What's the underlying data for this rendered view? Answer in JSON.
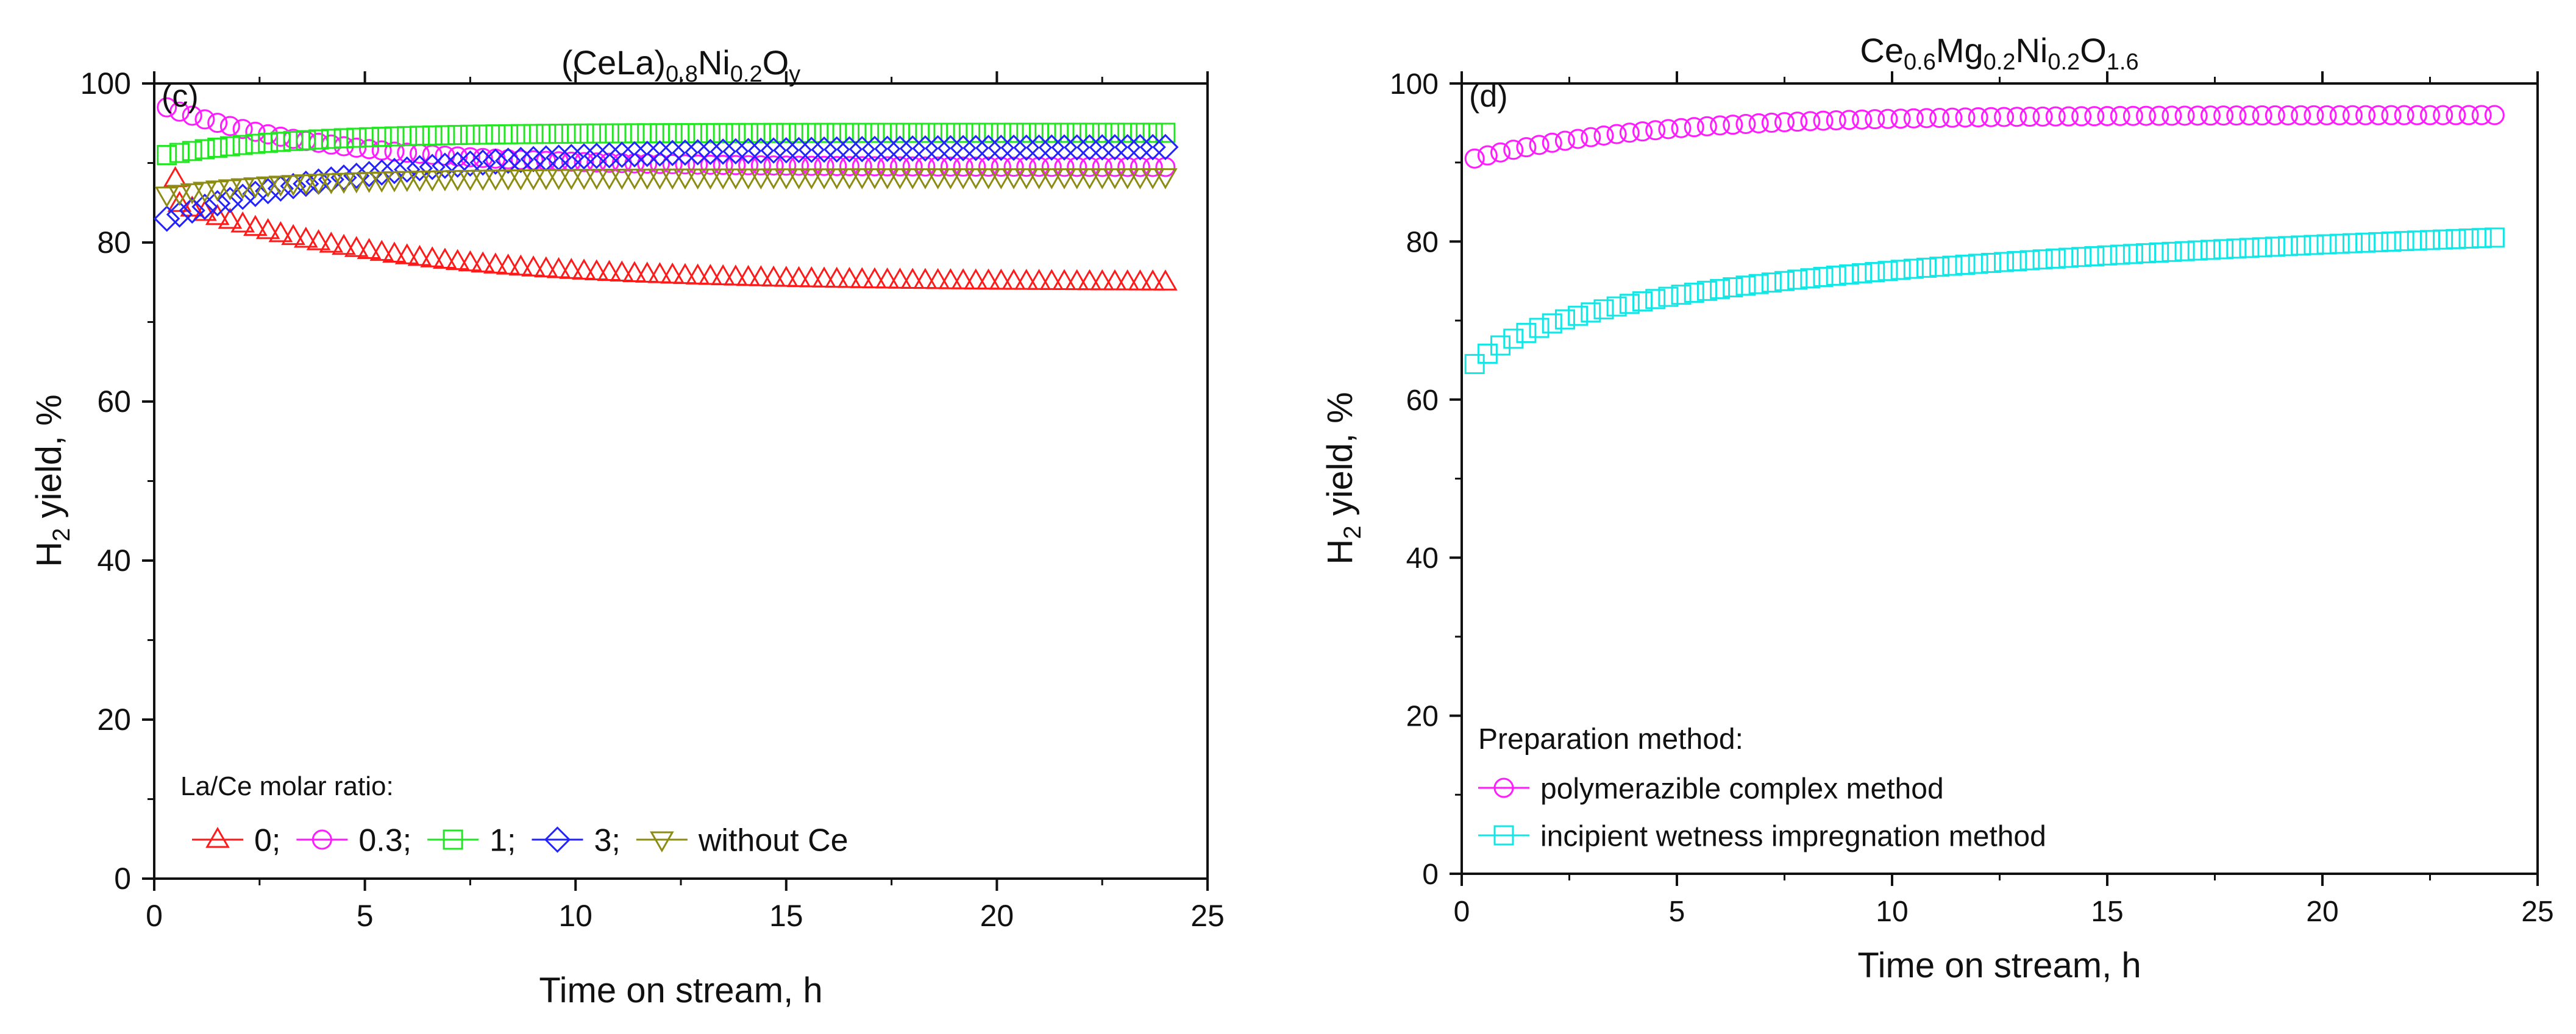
{
  "colors": {
    "red": "#ff1a1a",
    "magenta": "#ff1aff",
    "green": "#22e622",
    "blue": "#2222ff",
    "olive": "#8c8c14",
    "cyan": "#14e6e6"
  },
  "chart_data": [
    {
      "type": "scatter",
      "panel_label": "(c)",
      "title": {
        "base": "(CeLa)",
        "s1": "0.8",
        "mid": "Ni",
        "s2": "0.2",
        "tail": "O",
        "s3": "y"
      },
      "xlabel": "Time on stream, h",
      "ylabel": {
        "pre": "H",
        "sub": "2",
        "post": " yield, %"
      },
      "xlim": [
        0,
        25
      ],
      "ylim": [
        0,
        100
      ],
      "xticks": [
        "0",
        "5",
        "10",
        "15",
        "20",
        "25"
      ],
      "yticks": [
        "0",
        "20",
        "40",
        "60",
        "80",
        "100"
      ],
      "legend_title": "La/Ce molar ratio:",
      "legend_location": "bottom-left",
      "series": [
        {
          "name": "0;",
          "marker": "triangle-up",
          "color": "#ff1a1a",
          "t_start": 0.3,
          "t_end": 24.0,
          "y_start": 85.5,
          "y_end": 75.0,
          "shape": "decay",
          "tau": 5,
          "first_point": [
            0.5,
            88
          ]
        },
        {
          "name": "0.3;",
          "marker": "circle",
          "color": "#ff1aff",
          "t_start": 0.3,
          "t_end": 24.0,
          "y_start": 97.0,
          "y_end": 89.5,
          "shape": "decay",
          "tau": 4
        },
        {
          "name": "1;",
          "marker": "square",
          "color": "#22e622",
          "t_start": 0.3,
          "t_end": 24.0,
          "y_start": 91.0,
          "y_end": 93.8,
          "shape": "rise",
          "tau": 3
        },
        {
          "name": "3;",
          "marker": "diamond",
          "color": "#2222ff",
          "t_start": 0.3,
          "t_end": 24.0,
          "y_start": 83.0,
          "y_end": 92.0,
          "shape": "rise",
          "tau": 5
        },
        {
          "name": "without Ce",
          "marker": "triangle-down",
          "color": "#8c8c14",
          "t_start": 0.3,
          "t_end": 24.0,
          "y_start": 86.0,
          "y_end": 88.3,
          "shape": "rise",
          "tau": 3
        }
      ]
    },
    {
      "type": "scatter",
      "panel_label": "(d)",
      "title": {
        "a": "Ce",
        "a_sub": "0.6",
        "b": "Mg",
        "b_sub": "0.2",
        "c": "Ni",
        "c_sub": "0.2",
        "d": "O",
        "d_sub": "1.6"
      },
      "xlabel": "Time on stream, h",
      "ylabel": {
        "pre": "H",
        "sub": "2",
        "post": " yield, %"
      },
      "xlim": [
        0,
        25
      ],
      "ylim": [
        0,
        100
      ],
      "xticks": [
        "0",
        "5",
        "10",
        "15",
        "20",
        "25"
      ],
      "yticks": [
        "0",
        "20",
        "40",
        "60",
        "80",
        "100"
      ],
      "legend_title": "Preparation method:",
      "legend_location": "bottom-left",
      "series": [
        {
          "name": "polymerazible complex method",
          "marker": "circle",
          "color": "#ff1aff",
          "t_start": 0.3,
          "t_end": 24.0,
          "y_start": 90.5,
          "y_end": 96.0,
          "shape": "rise",
          "tau": 4
        },
        {
          "name": "incipient wetness impregnation method",
          "marker": "square",
          "color": "#14e6e6",
          "t_start": 0.3,
          "t_end": 24.0,
          "y_start": 64.5,
          "y_end": 80.5,
          "shape": "log"
        }
      ]
    }
  ]
}
